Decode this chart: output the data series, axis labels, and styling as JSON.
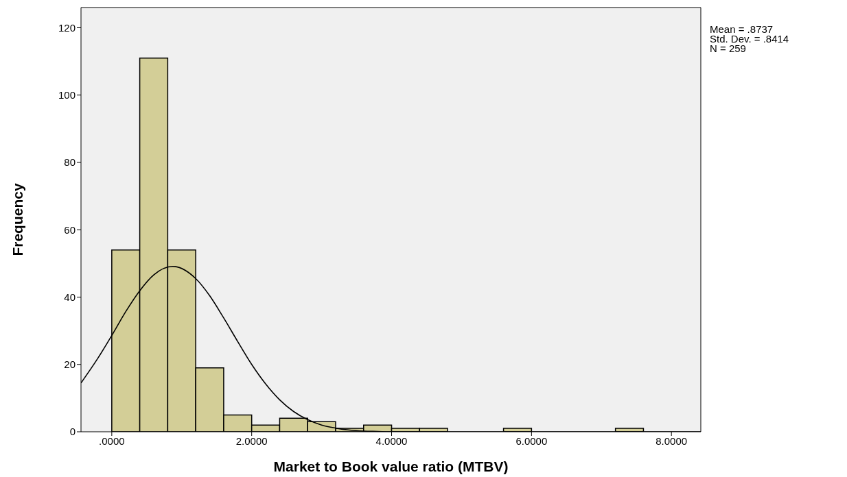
{
  "chart_data": {
    "type": "histogram",
    "xlabel": "Market to Book value ratio (MTBV)",
    "ylabel": "Frequency",
    "bins": [
      0,
      0.4,
      0.8,
      1.2,
      1.6,
      2.0,
      2.4,
      2.8,
      3.2,
      3.6,
      4.0,
      4.4,
      4.8,
      5.2,
      5.6,
      6.0,
      6.4,
      6.8,
      7.2,
      7.6
    ],
    "values": [
      54,
      111,
      54,
      19,
      5,
      2,
      4,
      3,
      1,
      2,
      1,
      1,
      0,
      0,
      1,
      0,
      0,
      0,
      1
    ],
    "color": "#d3ce97",
    "series": [
      {
        "type": "line",
        "color": "#000000",
        "x": [
          -0.44,
          -0.2,
          0,
          0.2,
          0.4,
          0.6,
          0.87,
          1.2,
          1.4,
          1.6,
          1.8,
          2.0,
          2.2,
          2.4,
          2.6,
          2.8,
          3.0,
          3.2,
          3.4,
          3.6,
          3.8,
          4.0,
          8.42
        ],
        "values": [
          14.5,
          21.8,
          28.6,
          35.7,
          41.9,
          46.6,
          49.1,
          45.5,
          40.4,
          33.8,
          26.8,
          20.0,
          14.2,
          9.5,
          6.0,
          3.6,
          2.0,
          1.1,
          0.5,
          0.2,
          0.1,
          0,
          0
        ]
      }
    ],
    "xlim": [
      -0.44,
      8.42
    ],
    "ylim": [
      0,
      126
    ],
    "xticks": [
      {
        "value": 0,
        "label": ".0000"
      },
      {
        "value": 2,
        "label": "2.0000"
      },
      {
        "value": 4,
        "label": "4.0000"
      },
      {
        "value": 6,
        "label": "6.0000"
      },
      {
        "value": 8,
        "label": "8.0000"
      }
    ],
    "yticks": [
      0,
      20,
      40,
      60,
      80,
      100,
      120
    ],
    "marker": "none",
    "line_style": "solid",
    "annotations": [
      "Mean = .8737",
      "Std. Dev. = .8414",
      "N = 259"
    ]
  }
}
